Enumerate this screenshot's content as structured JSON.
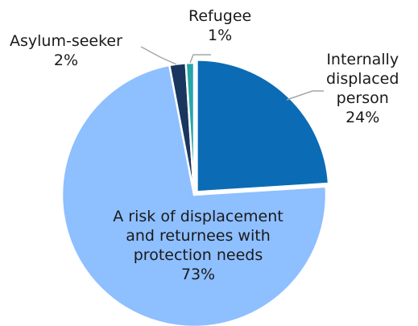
{
  "chart_data": {
    "type": "pie",
    "title": "",
    "slices": [
      {
        "name": "Internally displaced person",
        "value": 24,
        "value_label": "24%",
        "color": "#0b6bb5"
      },
      {
        "name": "A risk of displacement and returnees with protection needs",
        "value": 73,
        "value_label": "73%",
        "color": "#8ebfff"
      },
      {
        "name": "Asylum-seeker",
        "value": 2,
        "value_label": "2%",
        "color": "#19375e"
      },
      {
        "name": "Refugee",
        "value": 1,
        "value_label": "1%",
        "color": "#27a6a6"
      }
    ],
    "start_angle_deg": 0,
    "direction": "clockwise",
    "label_lines": {
      "internally_displaced": "Internally|displaced|person",
      "risk_of_displacement": "A risk of displacement and returnees with protection needs"
    }
  }
}
